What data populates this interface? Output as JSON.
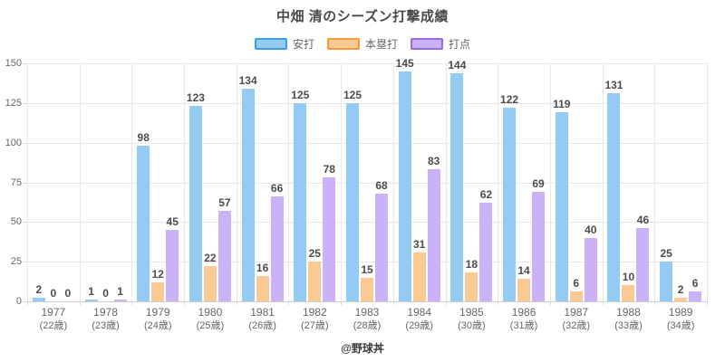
{
  "footer": {
    "credit": "@野球丼"
  },
  "chart_data": {
    "type": "bar",
    "title": "中畑 清のシーズン打撃成績",
    "categories": [
      "1977",
      "1978",
      "1979",
      "1980",
      "1981",
      "1982",
      "1983",
      "1984",
      "1985",
      "1986",
      "1987",
      "1988",
      "1989"
    ],
    "category_sublabels": [
      "(22歳)",
      "(23歳)",
      "(24歳)",
      "(25歳)",
      "(26歳)",
      "(27歳)",
      "(28歳)",
      "(29歳)",
      "(30歳)",
      "(31歳)",
      "(32歳)",
      "(33歳)",
      "(34歳)"
    ],
    "series": [
      {
        "name": "安打",
        "key": "hits",
        "fill": "#94CBF2",
        "border": "#3B9FE6",
        "values": [
          2,
          1,
          98,
          123,
          134,
          125,
          125,
          145,
          144,
          122,
          119,
          131,
          25
        ]
      },
      {
        "name": "本塁打",
        "key": "home-runs",
        "fill": "#FAC994",
        "border": "#F79A38",
        "values": [
          0,
          0,
          12,
          22,
          16,
          25,
          15,
          31,
          18,
          14,
          6,
          10,
          2
        ]
      },
      {
        "name": "打点",
        "key": "rbi",
        "fill": "#CBB1F6",
        "border": "#9B69E8",
        "values": [
          0,
          1,
          45,
          57,
          66,
          78,
          68,
          83,
          62,
          69,
          40,
          46,
          6
        ]
      }
    ],
    "ylim": [
      0,
      150
    ],
    "yticks": [
      0,
      25,
      50,
      75,
      100,
      125,
      150
    ],
    "grid": true,
    "legend_position": "top",
    "value_labels": true
  }
}
